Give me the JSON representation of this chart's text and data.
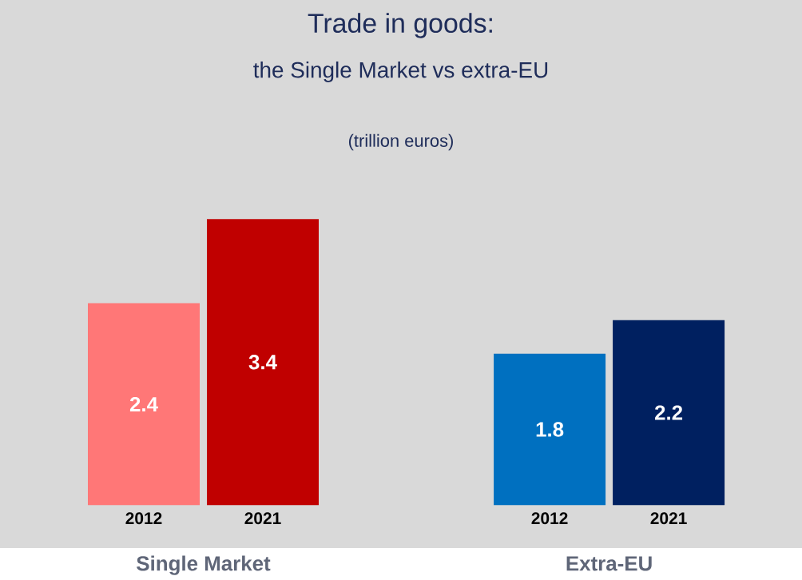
{
  "chart_data": {
    "type": "bar",
    "title": "Trade in goods:",
    "subtitle": "the Single Market vs extra-EU",
    "categories": [
      "2012",
      "2021",
      "2012",
      "2021"
    ],
    "values": [
      2.4,
      3.4,
      1.8,
      2.2
    ],
    "colors": [
      "#ff7777",
      "#c00000",
      "#0070c0",
      "#002060"
    ],
    "data_labels": true,
    "annotations": [
      "(trillion euros)",
      "Single Market",
      "Extra-EU"
    ]
  }
}
